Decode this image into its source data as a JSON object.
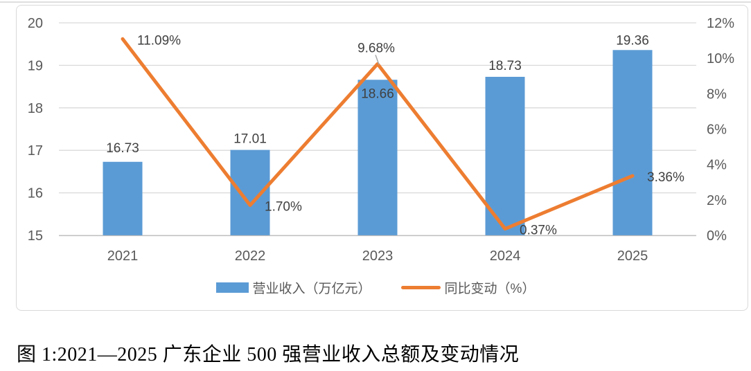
{
  "caption": "图 1:2021—2025 广东企业 500 强营业收入总额及变动情况",
  "chart_data": {
    "type": "combo",
    "categories": [
      "2021",
      "2022",
      "2023",
      "2024",
      "2025"
    ],
    "series": [
      {
        "name": "营业收入（万亿元）",
        "type": "bar",
        "axis": "left",
        "color": "#5B9BD5",
        "values": [
          16.73,
          17.01,
          18.66,
          18.73,
          19.36
        ],
        "labels": [
          "16.73",
          "17.01",
          "18.66",
          "18.73",
          "19.36"
        ]
      },
      {
        "name": "同比变动（%）",
        "type": "line",
        "axis": "right",
        "color": "#ED7D31",
        "values": [
          11.09,
          1.7,
          9.68,
          0.37,
          3.36
        ],
        "labels": [
          "11.09%",
          "1.70%",
          "9.68%",
          "0.37%",
          "3.36%"
        ]
      }
    ],
    "left_axis": {
      "min": 15,
      "max": 20,
      "tick_labels": [
        "20",
        "19",
        "18",
        "17",
        "16",
        "15"
      ]
    },
    "right_axis": {
      "min": 0,
      "max": 12,
      "tick_labels": [
        "12%",
        "10%",
        "8%",
        "6%",
        "4%",
        "2%",
        "0%"
      ]
    },
    "grid": true,
    "legend_position": "bottom",
    "colors": {
      "gridline": "#D9D9D9",
      "axis_line": "#BFBFBF",
      "tick_text": "#595959",
      "data_label": "#404040",
      "leader_line": "#A6A6A6"
    }
  }
}
